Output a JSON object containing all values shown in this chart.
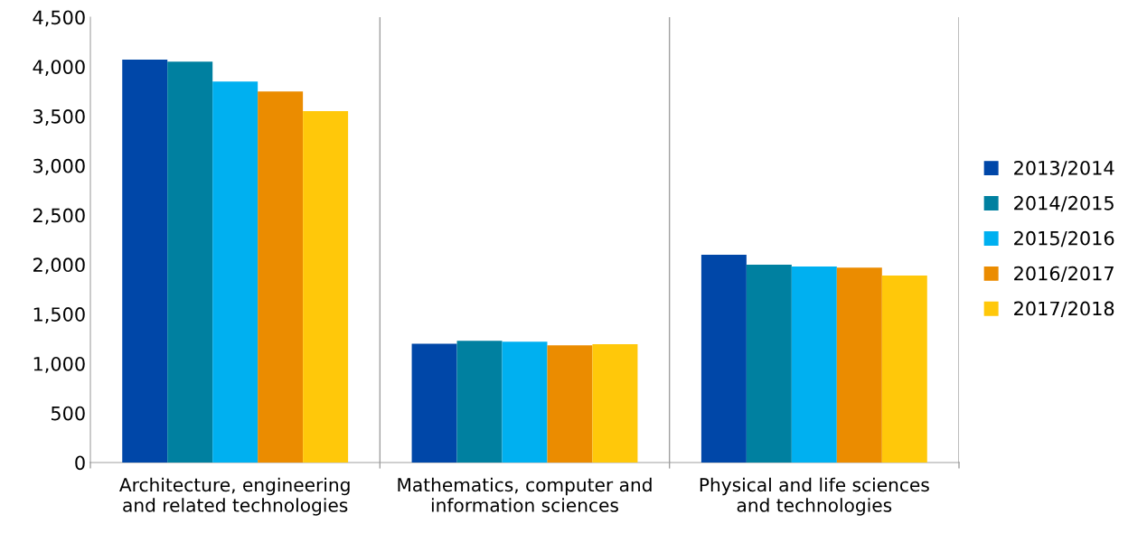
{
  "chart_data": {
    "type": "bar",
    "categories": [
      "Architecture, engineering\nand related technologies",
      "Mathematics, computer and\ninformation sciences",
      "Physical and life sciences\nand technologies"
    ],
    "series": [
      {
        "name": "2013/2014",
        "color": "#0047a8",
        "values": [
          4070,
          1200,
          2100
        ]
      },
      {
        "name": "2014/2015",
        "color": "#0080a0",
        "values": [
          4050,
          1230,
          2000
        ]
      },
      {
        "name": "2015/2016",
        "color": "#00b0f0",
        "values": [
          3850,
          1220,
          1980
        ]
      },
      {
        "name": "2016/2017",
        "color": "#eb8c00",
        "values": [
          3750,
          1185,
          1970
        ]
      },
      {
        "name": "2017/2018",
        "color": "#ffc80a",
        "values": [
          3550,
          1195,
          1890
        ]
      }
    ],
    "ylim": [
      0,
      4500
    ],
    "yticks": [
      {
        "value": 0,
        "label": "0"
      },
      {
        "value": 500,
        "label": "500"
      },
      {
        "value": 1000,
        "label": "1,000"
      },
      {
        "value": 1500,
        "label": "1,500"
      },
      {
        "value": 2000,
        "label": "2,000"
      },
      {
        "value": 2500,
        "label": "2,500"
      },
      {
        "value": 3000,
        "label": "3,000"
      },
      {
        "value": 3500,
        "label": "3,500"
      },
      {
        "value": 4000,
        "label": "4,000"
      },
      {
        "value": 4500,
        "label": "4,500"
      }
    ],
    "grid": "x",
    "legend": "right"
  }
}
